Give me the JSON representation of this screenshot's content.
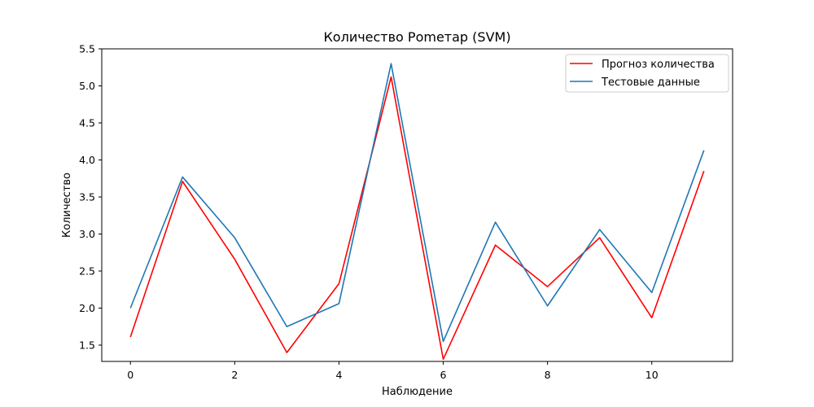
{
  "chart_data": {
    "type": "line",
    "title": "Количество Роmетар (SVM)",
    "xlabel": "Наблюдение",
    "ylabel": "Количество",
    "x": [
      0,
      1,
      2,
      3,
      4,
      5,
      6,
      7,
      8,
      9,
      10,
      11
    ],
    "xlim": [
      -0.55,
      11.55
    ],
    "ylim": [
      1.28,
      5.5
    ],
    "x_ticks": [
      0,
      2,
      4,
      6,
      8,
      10
    ],
    "y_ticks": [
      1.5,
      2.0,
      2.5,
      3.0,
      3.5,
      4.0,
      4.5,
      5.0,
      5.5
    ],
    "x_tick_labels": [
      "0",
      "2",
      "4",
      "6",
      "8",
      "10"
    ],
    "y_tick_labels": [
      "1.5",
      "2.0",
      "2.5",
      "3.0",
      "3.5",
      "4.0",
      "4.5",
      "5.0",
      "5.5"
    ],
    "grid": false,
    "legend_position": "top-right",
    "series": [
      {
        "name": "Прогноз количества",
        "color": "#ff0000",
        "values": [
          1.61,
          3.71,
          2.66,
          1.4,
          2.33,
          5.12,
          1.31,
          2.85,
          2.29,
          2.95,
          1.87,
          3.85
        ]
      },
      {
        "name": "Тестовые данные",
        "color": "#1f77b4",
        "values": [
          2.0,
          3.77,
          2.95,
          1.75,
          2.06,
          5.3,
          1.55,
          3.16,
          2.03,
          3.06,
          2.21,
          4.13
        ]
      }
    ]
  }
}
